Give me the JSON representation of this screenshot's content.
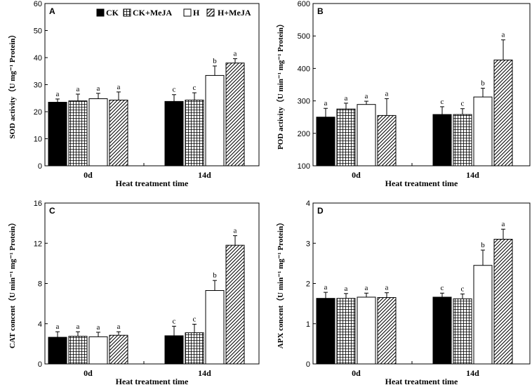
{
  "figure": {
    "legend": [
      "CK",
      "CK+MeJA",
      "H",
      "H+MeJA"
    ],
    "colors": {
      "ink": "#000000",
      "paper": "#ffffff"
    }
  },
  "chart_data": [
    {
      "type": "bar",
      "panel": "A",
      "title": "",
      "categories": [
        "0d",
        "14d"
      ],
      "xlabel": "Heat treatment time",
      "ylabel": "SOD activity（U mg⁻¹ Protein）",
      "ylim": [
        0,
        60
      ],
      "yticks": [
        0,
        10,
        20,
        30,
        40,
        50,
        60
      ],
      "series": [
        {
          "name": "CK",
          "values": [
            23.5,
            23.8
          ],
          "errors": [
            1.2,
            2.5
          ],
          "letters": [
            "a",
            "c"
          ]
        },
        {
          "name": "CK+MeJA",
          "values": [
            24.0,
            24.3
          ],
          "errors": [
            2.5,
            2.7
          ],
          "letters": [
            "a",
            "c"
          ]
        },
        {
          "name": "H",
          "values": [
            24.8,
            33.4
          ],
          "errors": [
            2.0,
            3.5
          ],
          "letters": [
            "a",
            "b"
          ]
        },
        {
          "name": "H+MeJA",
          "values": [
            24.3,
            38.0
          ],
          "errors": [
            3.0,
            1.6
          ],
          "letters": [
            "a",
            "a"
          ]
        }
      ]
    },
    {
      "type": "bar",
      "panel": "B",
      "title": "",
      "categories": [
        "0d",
        "14d"
      ],
      "xlabel": "Heat treatment time",
      "ylabel": "POD activity（U min⁻¹ mg⁻¹ Protein）",
      "ylim": [
        100,
        600
      ],
      "yticks": [
        100,
        200,
        300,
        400,
        500,
        600
      ],
      "series": [
        {
          "name": "CK",
          "values": [
            250,
            258
          ],
          "errors": [
            27,
            24
          ],
          "letters": [
            "a",
            "c"
          ]
        },
        {
          "name": "CK+MeJA",
          "values": [
            275,
            258
          ],
          "errors": [
            18,
            18
          ],
          "letters": [
            "a",
            "c"
          ]
        },
        {
          "name": "H",
          "values": [
            289,
            312
          ],
          "errors": [
            10,
            27
          ],
          "letters": [
            "a",
            "b"
          ]
        },
        {
          "name": "H+MeJA",
          "values": [
            255,
            426
          ],
          "errors": [
            52,
            62
          ],
          "letters": [
            "a",
            "a"
          ]
        }
      ]
    },
    {
      "type": "bar",
      "panel": "C",
      "title": "",
      "categories": [
        "0d",
        "14d"
      ],
      "xlabel": "Heat treatment time",
      "ylabel": "CAT concent（U min⁻¹ mg⁻¹ Protein）",
      "ylim": [
        0,
        16
      ],
      "yticks": [
        0,
        4,
        8,
        12,
        16
      ],
      "series": [
        {
          "name": "CK",
          "values": [
            2.65,
            2.8
          ],
          "errors": [
            0.55,
            0.95
          ],
          "letters": [
            "a",
            "c"
          ]
        },
        {
          "name": "CK+MeJA",
          "values": [
            2.75,
            3.1
          ],
          "errors": [
            0.45,
            0.85
          ],
          "letters": [
            "a",
            "c"
          ]
        },
        {
          "name": "H",
          "values": [
            2.7,
            7.3
          ],
          "errors": [
            0.45,
            1.0
          ],
          "letters": [
            "a",
            "b"
          ]
        },
        {
          "name": "H+MeJA",
          "values": [
            2.85,
            11.8
          ],
          "errors": [
            0.35,
            0.95
          ],
          "letters": [
            "a",
            "a"
          ]
        }
      ]
    },
    {
      "type": "bar",
      "panel": "D",
      "title": "",
      "categories": [
        "0d",
        "14d"
      ],
      "xlabel": "Heat treatment time",
      "ylabel": "APX concent（U min⁻¹ mg⁻¹ Protein）",
      "ylim": [
        0,
        4
      ],
      "yticks": [
        0,
        1,
        2,
        3,
        4
      ],
      "series": [
        {
          "name": "CK",
          "values": [
            1.63,
            1.66
          ],
          "errors": [
            0.15,
            0.1
          ],
          "letters": [
            "a",
            "c"
          ]
        },
        {
          "name": "CK+MeJA",
          "values": [
            1.63,
            1.62
          ],
          "errors": [
            0.12,
            0.12
          ],
          "letters": [
            "a",
            "c"
          ]
        },
        {
          "name": "H",
          "values": [
            1.66,
            2.45
          ],
          "errors": [
            0.1,
            0.38
          ],
          "letters": [
            "a",
            "b"
          ]
        },
        {
          "name": "H+MeJA",
          "values": [
            1.65,
            3.1
          ],
          "errors": [
            0.12,
            0.25
          ],
          "letters": [
            "a",
            "a"
          ]
        }
      ]
    }
  ]
}
